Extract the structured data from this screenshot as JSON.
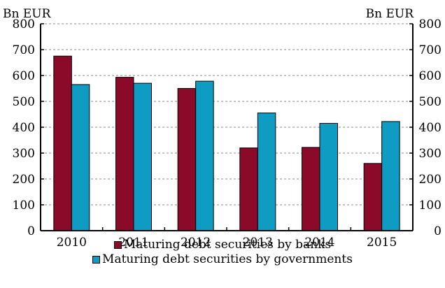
{
  "chart_data": {
    "type": "bar",
    "categories": [
      "2010",
      "2011",
      "2012",
      "2013",
      "2014",
      "2015"
    ],
    "series": [
      {
        "name": "Maturing debt securities by banks",
        "values": [
          675,
          593,
          550,
          320,
          322,
          260
        ],
        "color": "#8B0A2A"
      },
      {
        "name": "Maturing debt securities by governments",
        "values": [
          565,
          570,
          578,
          455,
          415,
          422
        ],
        "color": "#0E9CC3"
      }
    ],
    "ylabel_left": "Bn EUR",
    "ylabel_right": "Bn EUR",
    "ylim": [
      0,
      800
    ],
    "yticks": [
      "0",
      "100",
      "200",
      "300",
      "400",
      "500",
      "600",
      "700",
      "800"
    ],
    "grid": true,
    "legend_position": "bottom"
  }
}
